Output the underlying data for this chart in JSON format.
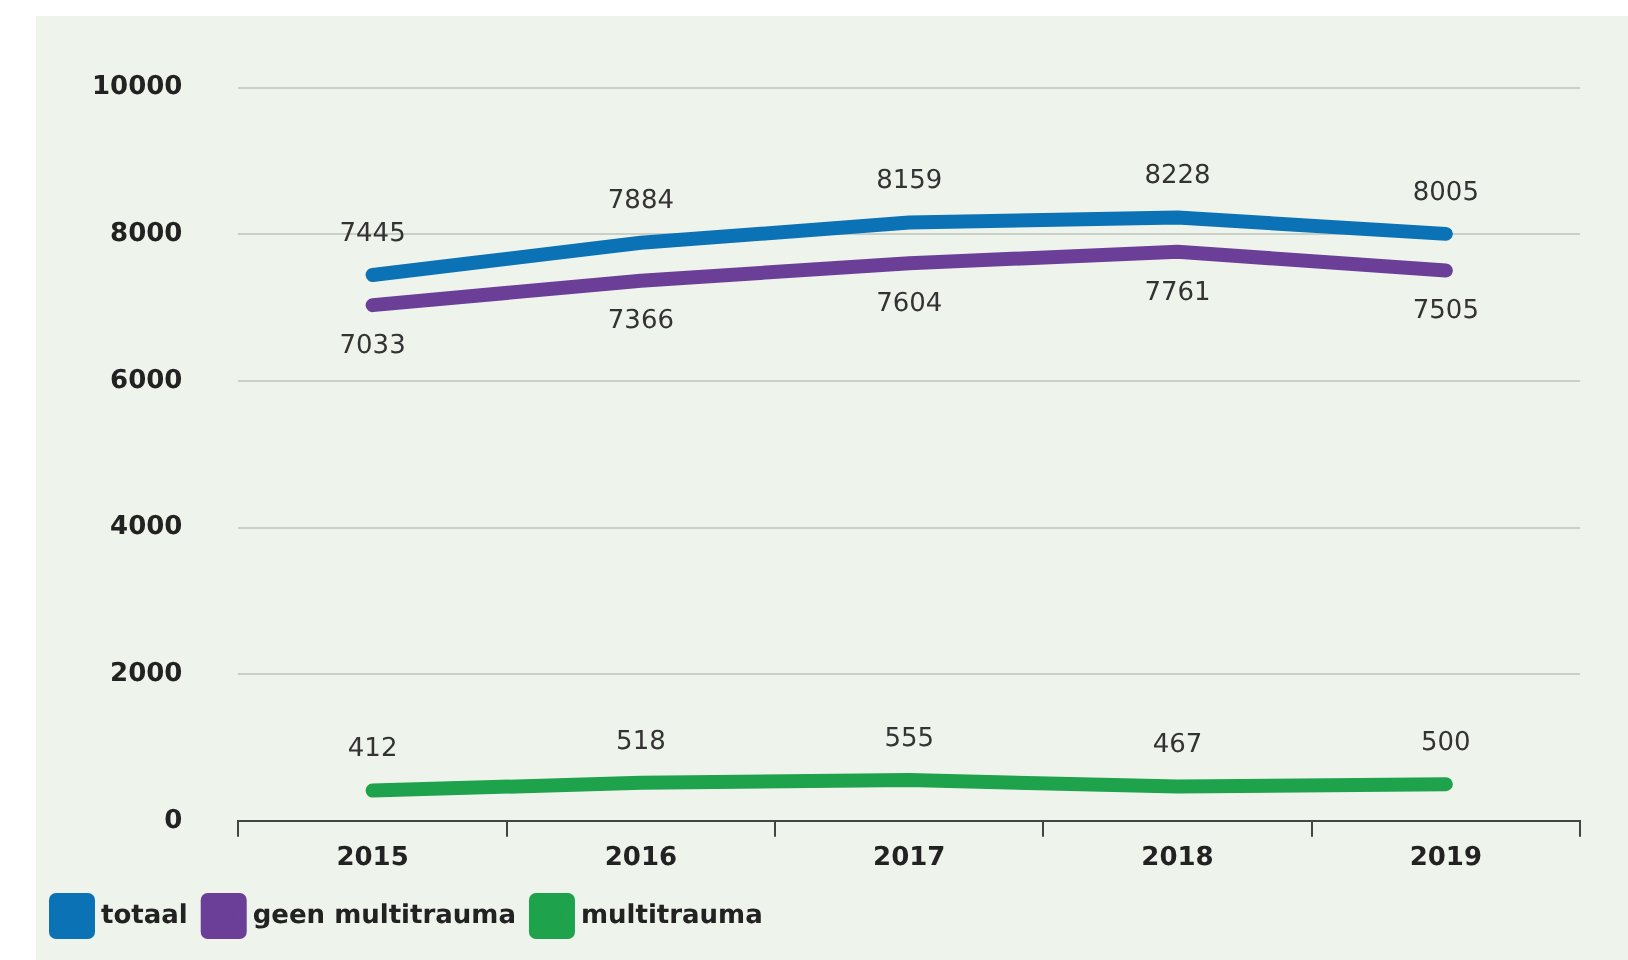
{
  "chart_data": {
    "type": "line",
    "categories": [
      "2015",
      "2016",
      "2017",
      "2018",
      "2019"
    ],
    "series": [
      {
        "name": "totaal",
        "color": "#0b72b5",
        "values": [
          7445,
          7884,
          8159,
          8228,
          8005
        ]
      },
      {
        "name": "geen multitrauma",
        "color": "#6b3f97",
        "values": [
          7033,
          7366,
          7604,
          7761,
          7505
        ]
      },
      {
        "name": "multitrauma",
        "color": "#1ea24b",
        "values": [
          412,
          518,
          555,
          467,
          500
        ]
      }
    ],
    "ylim": [
      0,
      10000
    ],
    "yticks": [
      0,
      2000,
      4000,
      6000,
      8000,
      10000
    ],
    "grid": "y",
    "legend": "bottom left",
    "data_labels": true,
    "marker": "none",
    "line_style": "solid"
  }
}
